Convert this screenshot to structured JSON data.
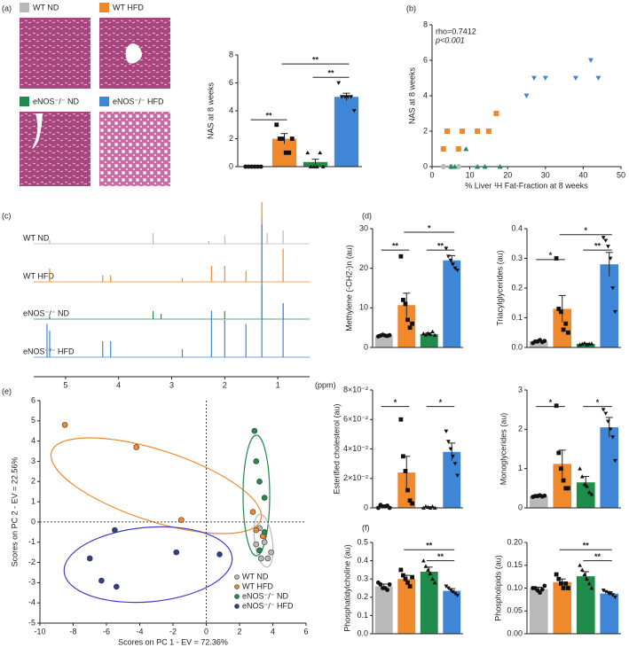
{
  "groups": [
    {
      "name": "WT ND",
      "color": "#b9b9b9",
      "marker": "circle"
    },
    {
      "name": "WT HFD",
      "color": "#f0892c",
      "marker": "square"
    },
    {
      "name": "eNOS⁻/⁻ ND",
      "color": "#1f8c4c",
      "marker": "triangle"
    },
    {
      "name": "eNOS⁻/⁻ HFD",
      "color": "#3f86d6",
      "marker": "triangle-down"
    }
  ],
  "chart_data": [
    {
      "type": "bar",
      "panel": "(a)",
      "ylabel": "NAS at 8 weeks",
      "ylim": [
        0,
        8
      ],
      "yticks": [
        0,
        2,
        4,
        6,
        8
      ],
      "values": [
        0,
        2,
        0.33,
        5
      ],
      "errors": [
        0,
        0.37,
        0.2,
        0.26
      ],
      "points": [
        [
          0,
          0,
          0,
          0,
          0,
          0
        ],
        [
          3,
          2,
          2,
          1,
          1,
          2
        ],
        [
          1,
          0,
          0,
          0,
          1,
          0
        ],
        [
          6,
          5,
          5,
          5,
          5,
          4
        ]
      ],
      "annotations": [
        "**",
        "**",
        "**"
      ]
    },
    {
      "type": "scatter",
      "panel": "(b)",
      "ylabel": "NAS at 8 weeks",
      "xlabel": "% Liver ¹H Fat-Fraction at 8 weeks",
      "xlim": [
        0,
        50
      ],
      "xticks": [
        0,
        10,
        20,
        30,
        40,
        50
      ],
      "ylim": [
        0,
        8
      ],
      "yticks": [
        0,
        2,
        4,
        6,
        8
      ],
      "annotations": [
        "rho=0.7412",
        "p<0.001"
      ],
      "series": [
        {
          "color": "#b9b9b9",
          "marker": "circle",
          "x": [
            3,
            5,
            7
          ],
          "y": [
            0,
            0,
            0
          ]
        },
        {
          "color": "#f0892c",
          "marker": "square",
          "x": [
            3,
            4,
            7,
            8,
            12,
            15,
            17
          ],
          "y": [
            1,
            2,
            1,
            2,
            2,
            2,
            3
          ]
        },
        {
          "color": "#1f8c4c",
          "marker": "triangle",
          "x": [
            5,
            6,
            9,
            12,
            14,
            18
          ],
          "y": [
            0,
            0,
            1,
            0,
            0,
            0
          ]
        },
        {
          "color": "#3f86d6",
          "marker": "triangle-down",
          "x": [
            25,
            27,
            30,
            38,
            42,
            44
          ],
          "y": [
            4,
            5,
            5,
            5,
            6,
            5
          ]
        }
      ]
    },
    {
      "type": "spectrum",
      "panel": "(c)",
      "xlabel": "(ppm)",
      "xlim": [
        5.6,
        0.4
      ],
      "xticks": [
        5,
        4,
        3,
        2,
        1
      ],
      "series": [
        {
          "peaks": [
            [
              5.3,
              0.03
            ],
            [
              3.35,
              0.08
            ],
            [
              2.3,
              0.02
            ],
            [
              2.0,
              0.06
            ],
            [
              1.3,
              0.2
            ],
            [
              1.2,
              0.08
            ],
            [
              0.9,
              0.1
            ]
          ]
        },
        {
          "peaks": [
            [
              5.3,
              0.1
            ],
            [
              4.3,
              0.05
            ],
            [
              4.15,
              0.05
            ],
            [
              2.8,
              0.03
            ],
            [
              2.25,
              0.12
            ],
            [
              2.0,
              0.12
            ],
            [
              1.6,
              0.08
            ],
            [
              1.3,
              0.6
            ],
            [
              0.9,
              0.25
            ]
          ]
        },
        {
          "peaks": [
            [
              5.3,
              0.02
            ],
            [
              3.35,
              0.06
            ],
            [
              3.2,
              0.04
            ],
            [
              2.0,
              0.06
            ],
            [
              1.3,
              0.25
            ],
            [
              0.9,
              0.12
            ]
          ]
        },
        {
          "peaks": [
            [
              5.35,
              0.25
            ],
            [
              5.3,
              0.2
            ],
            [
              4.3,
              0.12
            ],
            [
              4.15,
              0.12
            ],
            [
              2.8,
              0.06
            ],
            [
              2.25,
              0.35
            ],
            [
              2.0,
              0.28
            ],
            [
              1.6,
              0.25
            ],
            [
              1.3,
              1.0
            ],
            [
              0.9,
              0.4
            ]
          ]
        }
      ]
    },
    {
      "type": "bar",
      "panel": "(d)",
      "ylabel": "Methylene (-CH2-)n (au)",
      "ylim": [
        0,
        30
      ],
      "yticks": [
        0,
        10,
        20,
        30
      ],
      "values": [
        3,
        10.7,
        3.4,
        22
      ],
      "errors": [
        0.2,
        3,
        0.3,
        1.2
      ],
      "points": [
        [
          2.8,
          3,
          3.2,
          3,
          2.9,
          3.1
        ],
        [
          23,
          12,
          11,
          7,
          5,
          6
        ],
        [
          3.5,
          3.2,
          3.6,
          3.3,
          4,
          3.1
        ],
        [
          25,
          23,
          22,
          21,
          20,
          19.5
        ]
      ],
      "annotations": [
        "**",
        "*",
        "**"
      ]
    },
    {
      "type": "bar",
      "ylabel": "Triacylglycerides (au)",
      "ylim": [
        0,
        0.4
      ],
      "yticks": [
        {
          "value": 0,
          "label": "0.0"
        },
        0.1,
        0.2,
        0.3,
        0.4
      ],
      "values": [
        0.02,
        0.13,
        0.012,
        0.28
      ],
      "errors": [
        0.003,
        0.045,
        0.002,
        0.04
      ],
      "points": [
        [
          0.015,
          0.02,
          0.02,
          0.025,
          0.018,
          0.022
        ],
        [
          0.3,
          0.13,
          0.12,
          0.06,
          0.08,
          0.05
        ],
        [
          0.01,
          0.012,
          0.015,
          0.01,
          0.012,
          0.013
        ],
        [
          0.37,
          0.36,
          0.34,
          0.3,
          0.2,
          0.12
        ]
      ],
      "annotations": [
        "*",
        "*",
        "**"
      ]
    },
    {
      "type": "bar",
      "ylabel": "Esterified cholesterol (au)",
      "ylim": [
        0,
        0.08
      ],
      "yticks": [
        0,
        {
          "value": 0.02,
          "label": "2×10⁻²"
        },
        {
          "value": 0.04,
          "label": "4×10⁻²"
        },
        {
          "value": 0.06,
          "label": "6×10⁻²"
        },
        {
          "value": 0.08,
          "label": "8×10⁻²"
        }
      ],
      "values": [
        0.001,
        0.024,
        0.0005,
        0.038
      ],
      "errors": [
        0.0005,
        0.011,
        0.0003,
        0.006
      ],
      "points": [
        [
          0,
          0.002,
          0.001,
          0.001,
          0.0015,
          0
        ],
        [
          0.06,
          0.035,
          0.025,
          0.012,
          0.005,
          0.003
        ],
        [
          0,
          0.001,
          0.0005,
          0,
          0.001,
          0
        ],
        [
          0.052,
          0.045,
          0.04,
          0.035,
          0.03,
          0.022
        ]
      ],
      "annotations": [
        "*",
        "*"
      ]
    },
    {
      "type": "bar",
      "ylabel": "Monoglycerides (au)",
      "ylim": [
        0,
        3
      ],
      "yticks": [
        0,
        1,
        2,
        3
      ],
      "values": [
        0.3,
        1.12,
        0.65,
        2.05
      ],
      "errors": [
        0.02,
        0.35,
        0.15,
        0.25
      ],
      "points": [
        [
          0.28,
          0.3,
          0.3,
          0.32,
          0.29,
          0.31
        ],
        [
          2.6,
          1.4,
          1.0,
          0.7,
          0.5,
          0.5
        ],
        [
          1.0,
          0.8,
          0.6,
          0.55,
          0.4,
          0.35
        ],
        [
          2.5,
          2.4,
          2.2,
          2.0,
          1.8,
          1.2
        ]
      ],
      "annotations": [
        "*",
        "*"
      ]
    },
    {
      "type": "scatter",
      "panel": "(e)",
      "xlabel": "Scores on PC 1 - EV = 72.36%",
      "ylabel": "Scores on PC 2 - EV = 22.56%",
      "xlim": [
        -10,
        6
      ],
      "xticks": [
        -10,
        -8,
        -6,
        -4,
        -2,
        0,
        2,
        4,
        6
      ],
      "ylim": [
        -5,
        6
      ],
      "yticks": [
        -5,
        -4,
        -3,
        -2,
        -1,
        0,
        1,
        2,
        3,
        4,
        5,
        6
      ],
      "zero_lines": true,
      "series": [
        {
          "name": "WT ND",
          "color": "#b9b9b9",
          "marker": "circle",
          "x": [
            3.5,
            3.3,
            3.7,
            3.9,
            3.2,
            3.0
          ],
          "y": [
            -1,
            -1.8,
            -1.8,
            -1.5,
            -0.3,
            -1.1
          ]
        },
        {
          "name": "WT HFD",
          "color": "#f0892c",
          "marker": "circle",
          "x": [
            -8.5,
            -4.2,
            -1.5,
            2.8,
            3.4,
            3.0
          ],
          "y": [
            4.8,
            3.7,
            0.1,
            0.5,
            -0.7,
            -0.4
          ]
        },
        {
          "name": "eNOS⁻/⁻ ND",
          "color": "#1f8c4c",
          "marker": "circle",
          "x": [
            2.9,
            3.0,
            3.2,
            3.5,
            3.5,
            3.2
          ],
          "y": [
            4.5,
            3.0,
            2.0,
            1.2,
            -0.5,
            -1.4
          ]
        },
        {
          "name": "eNOS⁻/⁻ HFD",
          "color": "#2d3f8f",
          "marker": "circle",
          "x": [
            -7,
            -6.3,
            -5.5,
            -5.4,
            -1.8,
            0.8
          ],
          "y": [
            -1.8,
            -2.9,
            -0.4,
            -3.2,
            -1.5,
            -1.6
          ]
        }
      ]
    },
    {
      "type": "bar",
      "panel": "(f)",
      "ylabel": "Phosphatidylcholine (au)",
      "ylim": [
        0,
        0.5
      ],
      "yticks": [
        {
          "value": 0,
          "label": "0.0"
        },
        0.1,
        0.2,
        0.3,
        0.4,
        0.5
      ],
      "values": [
        0.26,
        0.3,
        0.34,
        0.235
      ],
      "errors": [
        0.012,
        0.02,
        0.025,
        0.012
      ],
      "points": [
        [
          0.28,
          0.27,
          0.25,
          0.25,
          0.24,
          0.27
        ],
        [
          0.35,
          0.32,
          0.3,
          0.28,
          0.26,
          0.31
        ],
        [
          0.4,
          0.37,
          0.35,
          0.33,
          0.3,
          0.28
        ],
        [
          0.26,
          0.25,
          0.24,
          0.23,
          0.22,
          0.21
        ]
      ],
      "annotations": [
        "**",
        "**"
      ]
    },
    {
      "type": "bar",
      "ylabel": "Phospholipids (au)",
      "ylim": [
        0,
        0.2
      ],
      "yticks": [
        {
          "value": 0,
          "label": "0.00"
        },
        {
          "value": 0.05,
          "label": "0.05"
        },
        {
          "value": 0.1,
          "label": "0.10"
        },
        {
          "value": 0.15,
          "label": "0.15"
        },
        {
          "value": 0.2,
          "label": "0.20"
        }
      ],
      "values": [
        0.098,
        0.113,
        0.126,
        0.088
      ],
      "errors": [
        0.004,
        0.007,
        0.01,
        0.004
      ],
      "points": [
        [
          0.1,
          0.1,
          0.095,
          0.09,
          0.097,
          0.105
        ],
        [
          0.13,
          0.12,
          0.11,
          0.1,
          0.11,
          0.1
        ],
        [
          0.15,
          0.14,
          0.13,
          0.12,
          0.11,
          0.1
        ],
        [
          0.095,
          0.092,
          0.09,
          0.088,
          0.085,
          0.08
        ]
      ],
      "annotations": [
        "**",
        "**"
      ]
    }
  ]
}
